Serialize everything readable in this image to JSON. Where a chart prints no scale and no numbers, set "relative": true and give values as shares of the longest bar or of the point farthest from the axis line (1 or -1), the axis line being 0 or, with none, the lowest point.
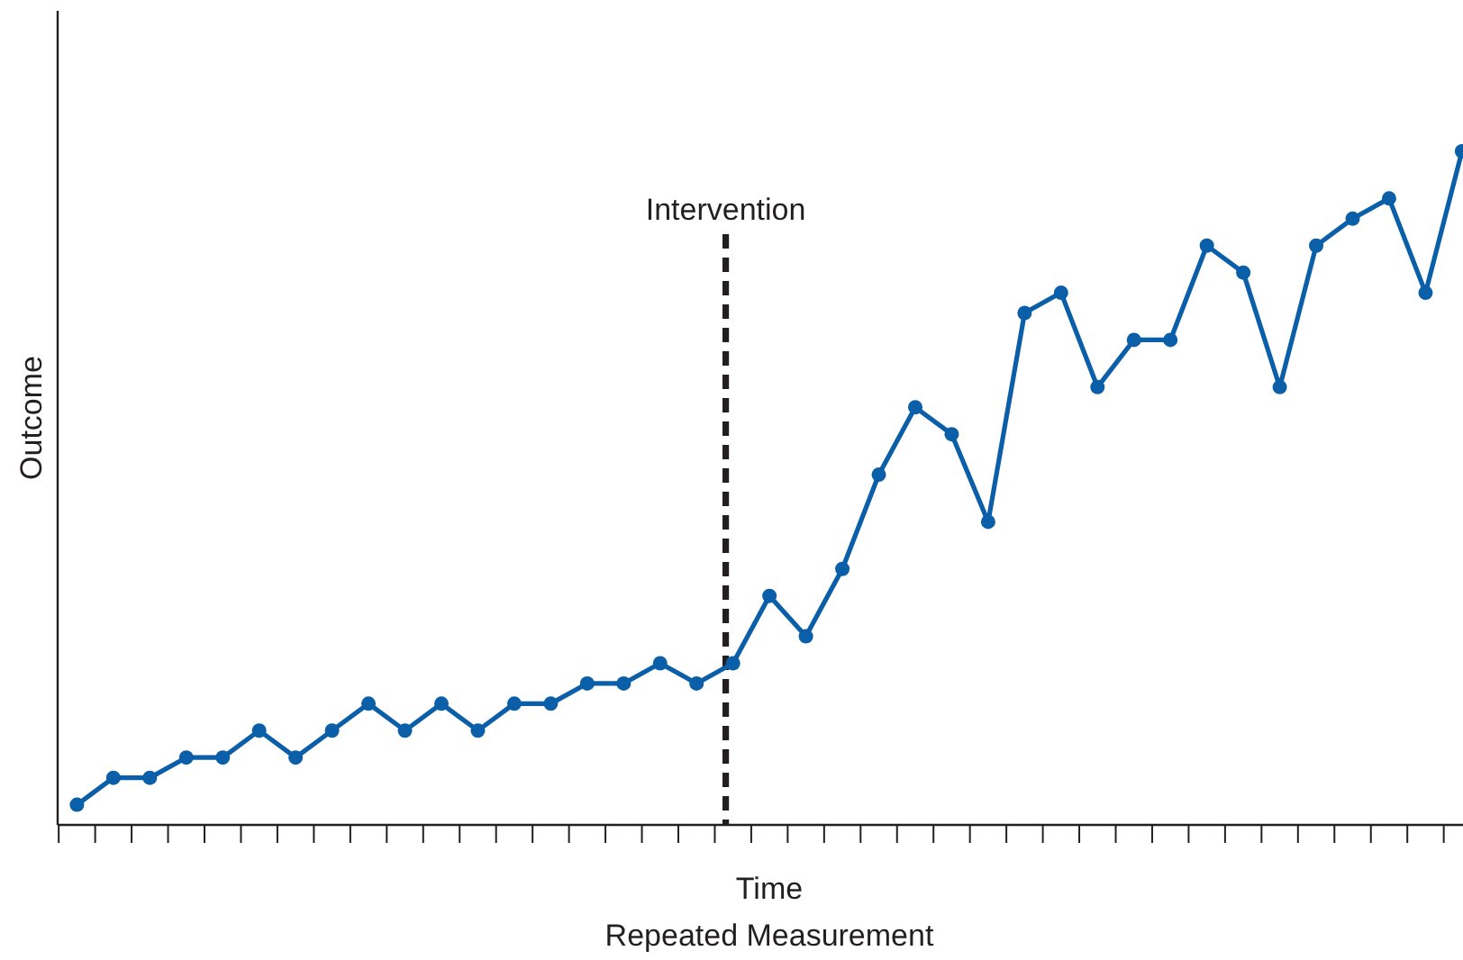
{
  "chart_data": {
    "type": "line",
    "xlabel": "Time\nRepeated Measurement",
    "ylabel": "Outcome",
    "relative": true,
    "marker": "circle",
    "line_style": "solid",
    "categories": [
      null,
      null,
      null,
      null,
      null,
      null,
      null,
      null,
      null,
      null,
      null,
      null,
      null,
      null,
      null,
      null,
      null,
      null,
      null,
      null,
      null,
      null,
      null,
      null,
      null,
      null,
      null,
      null,
      null,
      null,
      null,
      null,
      null,
      null,
      null,
      null,
      null,
      null,
      null
    ],
    "series": [
      {
        "color": "#0b5ea8",
        "values": [
          0.03,
          0.07,
          0.07,
          0.1,
          0.1,
          0.14,
          0.1,
          0.14,
          0.18,
          0.14,
          0.18,
          0.14,
          0.18,
          0.18,
          0.21,
          0.21,
          0.24,
          0.21,
          0.24,
          0.34,
          0.28,
          0.38,
          0.52,
          0.62,
          0.58,
          0.45,
          0.76,
          0.79,
          0.65,
          0.72,
          0.72,
          0.86,
          0.82,
          0.65,
          0.86,
          0.9,
          0.93,
          0.79,
          1
        ]
      }
    ],
    "annotations": [
      "Intervention"
    ]
  }
}
